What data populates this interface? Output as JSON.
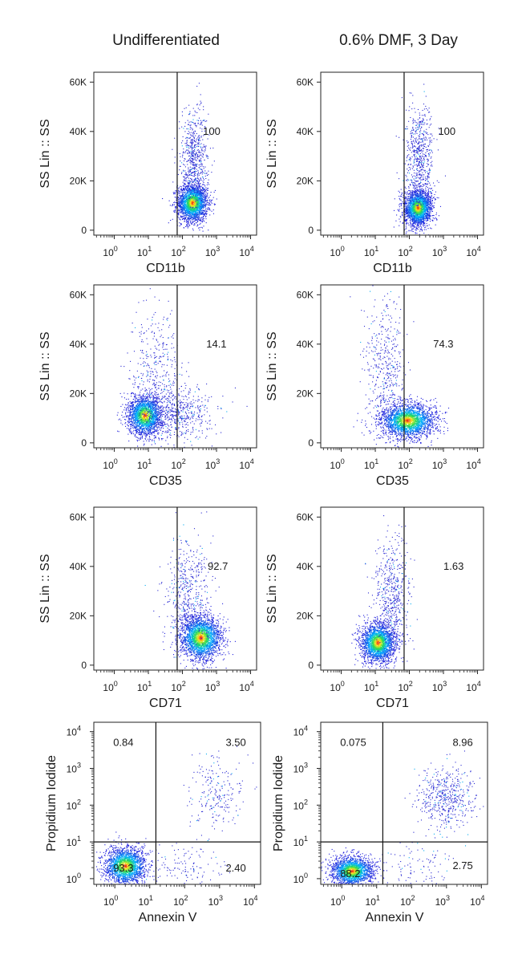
{
  "columns": [
    "Undifferentiated",
    "0.6% DMF, 3 Day"
  ],
  "chart_data": [
    {
      "type": "scatter",
      "id": "cd11b-undiff",
      "row": 0,
      "col": 0,
      "xlabel": "CD11b",
      "ylabel": "SS Lin :: SS",
      "xscale": "log",
      "xlim": [
        0.25,
        15000
      ],
      "ylim": [
        -2000,
        64000
      ],
      "xticks": [
        1,
        10,
        100,
        1000,
        10000
      ],
      "yticks": [
        0,
        20000,
        40000,
        60000
      ],
      "ytick_labels": [
        "0",
        "20K",
        "40K",
        "60K"
      ],
      "gates": {
        "vertical": 70
      },
      "gate_labels": [
        {
          "text": "100",
          "x": 400,
          "y": 40000
        }
      ],
      "populations": [
        {
          "n": 2200,
          "xcenter": 200,
          "xspread": 0.22,
          "ycenter": 11000,
          "yspread": 3800,
          "dense": true
        },
        {
          "n": 650,
          "xcenter": 220,
          "xspread": 0.2,
          "ycenter": 28000,
          "yspread": 10000,
          "dense": false
        }
      ]
    },
    {
      "type": "scatter",
      "id": "cd11b-dmf",
      "row": 0,
      "col": 1,
      "xlabel": "CD11b",
      "ylabel": "SS Lin :: SS",
      "xscale": "log",
      "xlim": [
        0.25,
        15000
      ],
      "ylim": [
        -2000,
        64000
      ],
      "xticks": [
        1,
        10,
        100,
        1000,
        10000
      ],
      "yticks": [
        0,
        20000,
        40000,
        60000
      ],
      "ytick_labels": [
        "0",
        "20K",
        "40K",
        "60K"
      ],
      "gates": {
        "vertical": 70
      },
      "gate_labels": [
        {
          "text": "100",
          "x": 700,
          "y": 40000
        }
      ],
      "populations": [
        {
          "n": 2200,
          "xcenter": 180,
          "xspread": 0.2,
          "ycenter": 9000,
          "yspread": 3500,
          "dense": true
        },
        {
          "n": 650,
          "xcenter": 200,
          "xspread": 0.2,
          "ycenter": 28000,
          "yspread": 11000,
          "dense": false
        }
      ]
    },
    {
      "type": "scatter",
      "id": "cd35-undiff",
      "row": 1,
      "col": 0,
      "xlabel": "CD35",
      "ylabel": "SS Lin :: SS",
      "xscale": "log",
      "xlim": [
        0.25,
        15000
      ],
      "ylim": [
        -2000,
        64000
      ],
      "xticks": [
        1,
        10,
        100,
        1000,
        10000
      ],
      "yticks": [
        0,
        20000,
        40000,
        60000
      ],
      "ytick_labels": [
        "0",
        "20K",
        "40K",
        "60K"
      ],
      "gates": {
        "vertical": 70
      },
      "gate_labels": [
        {
          "text": "14.1",
          "x": 500,
          "y": 40000
        }
      ],
      "populations": [
        {
          "n": 2000,
          "xcenter": 8,
          "xspread": 0.25,
          "ycenter": 11000,
          "yspread": 4000,
          "dense": true
        },
        {
          "n": 600,
          "xcenter": 60,
          "xspread": 0.55,
          "ycenter": 12000,
          "yspread": 6000,
          "dense": false
        },
        {
          "n": 350,
          "xcenter": 15,
          "xspread": 0.35,
          "ycenter": 30000,
          "yspread": 12000,
          "dense": false
        }
      ]
    },
    {
      "type": "scatter",
      "id": "cd35-dmf",
      "row": 1,
      "col": 1,
      "xlabel": "CD35",
      "ylabel": "SS Lin :: SS",
      "xscale": "log",
      "xlim": [
        0.25,
        15000
      ],
      "ylim": [
        -2000,
        64000
      ],
      "xticks": [
        1,
        10,
        100,
        1000,
        10000
      ],
      "yticks": [
        0,
        20000,
        40000,
        60000
      ],
      "ytick_labels": [
        "0",
        "20K",
        "40K",
        "60K"
      ],
      "gates": {
        "vertical": 70
      },
      "gate_labels": [
        {
          "text": "74.3",
          "x": 500,
          "y": 40000
        }
      ],
      "populations": [
        {
          "n": 2300,
          "xcenter": 90,
          "xspread": 0.4,
          "ycenter": 9000,
          "yspread": 3500,
          "dense": true
        },
        {
          "n": 450,
          "xcenter": 20,
          "xspread": 0.3,
          "ycenter": 30000,
          "yspread": 14000,
          "dense": false
        }
      ]
    },
    {
      "type": "scatter",
      "id": "cd71-undiff",
      "row": 2,
      "col": 0,
      "xlabel": "CD71",
      "ylabel": "SS Lin :: SS",
      "xscale": "log",
      "xlim": [
        0.25,
        15000
      ],
      "ylim": [
        -2000,
        64000
      ],
      "xticks": [
        1,
        10,
        100,
        1000,
        10000
      ],
      "yticks": [
        0,
        20000,
        40000,
        60000
      ],
      "ytick_labels": [
        "0",
        "20K",
        "40K",
        "60K"
      ],
      "gates": {
        "vertical": 70
      },
      "gate_labels": [
        {
          "text": "92.7",
          "x": 550,
          "y": 40000
        }
      ],
      "populations": [
        {
          "n": 2400,
          "xcenter": 350,
          "xspread": 0.3,
          "ycenter": 11000,
          "yspread": 4500,
          "dense": true
        },
        {
          "n": 500,
          "xcenter": 150,
          "xspread": 0.35,
          "ycenter": 28000,
          "yspread": 12000,
          "dense": false
        }
      ]
    },
    {
      "type": "scatter",
      "id": "cd71-dmf",
      "row": 2,
      "col": 1,
      "xlabel": "CD71",
      "ylabel": "SS Lin :: SS",
      "xscale": "log",
      "xlim": [
        0.25,
        15000
      ],
      "ylim": [
        -2000,
        64000
      ],
      "xticks": [
        1,
        10,
        100,
        1000,
        10000
      ],
      "yticks": [
        0,
        20000,
        40000,
        60000
      ],
      "ytick_labels": [
        "0",
        "20K",
        "40K",
        "60K"
      ],
      "gates": {
        "vertical": 70
      },
      "gate_labels": [
        {
          "text": "1.63",
          "x": 1000,
          "y": 40000
        }
      ],
      "populations": [
        {
          "n": 2200,
          "xcenter": 12,
          "xspread": 0.25,
          "ycenter": 9000,
          "yspread": 4000,
          "dense": true
        },
        {
          "n": 550,
          "xcenter": 30,
          "xspread": 0.25,
          "ycenter": 28000,
          "yspread": 12000,
          "dense": false
        }
      ]
    },
    {
      "type": "scatter",
      "id": "annexin-undiff",
      "row": 3,
      "col": 0,
      "xlabel": "Annexin V",
      "ylabel": "Propidium Iodide",
      "xscale": "log",
      "yscale": "log",
      "xlim": [
        0.25,
        15000
      ],
      "ylim": [
        0.7,
        18000
      ],
      "xticks": [
        1,
        10,
        100,
        1000,
        10000
      ],
      "yticks": [
        1,
        10,
        100,
        1000,
        10000
      ],
      "gates": {
        "vertical": 15,
        "horizontal": 10
      },
      "gate_labels": [
        {
          "text": "0.84",
          "x": 0.9,
          "y": 5000
        },
        {
          "text": "3.50",
          "x": 1500,
          "y": 5000
        },
        {
          "text": "93.3",
          "x": 0.9,
          "y": 1.9
        },
        {
          "text": "2.40",
          "x": 1500,
          "y": 1.9
        }
      ],
      "populations": [
        {
          "n": 2000,
          "xcenter": 2,
          "xspread": 0.3,
          "ycenter": 2.2,
          "yspread": 0.25,
          "dense": true,
          "ylog": true
        },
        {
          "n": 220,
          "xcenter": 800,
          "xspread": 0.4,
          "ycenter": 200,
          "yspread": 0.5,
          "dense": false,
          "ylog": true
        },
        {
          "n": 120,
          "xcenter": 100,
          "xspread": 0.6,
          "ycenter": 2,
          "yspread": 0.3,
          "dense": false,
          "ylog": true
        }
      ]
    },
    {
      "type": "scatter",
      "id": "annexin-dmf",
      "row": 3,
      "col": 1,
      "xlabel": "Annexin V",
      "ylabel": "Propidium Iodide",
      "xscale": "log",
      "yscale": "log",
      "xlim": [
        0.25,
        15000
      ],
      "ylim": [
        0.7,
        18000
      ],
      "xticks": [
        1,
        10,
        100,
        1000,
        10000
      ],
      "yticks": [
        1,
        10,
        100,
        1000,
        10000
      ],
      "gates": {
        "vertical": 15,
        "horizontal": 10
      },
      "gate_labels": [
        {
          "text": "0.075",
          "x": 0.9,
          "y": 5000
        },
        {
          "text": "8.96",
          "x": 1500,
          "y": 5000
        },
        {
          "text": "88.2",
          "x": 0.9,
          "y": 1.35
        },
        {
          "text": "2.75",
          "x": 1500,
          "y": 2.2
        }
      ],
      "populations": [
        {
          "n": 1900,
          "xcenter": 2,
          "xspread": 0.3,
          "ycenter": 1.6,
          "yspread": 0.2,
          "dense": true,
          "ylog": true
        },
        {
          "n": 500,
          "xcenter": 1000,
          "xspread": 0.4,
          "ycenter": 150,
          "yspread": 0.45,
          "dense": false,
          "ylog": true
        },
        {
          "n": 100,
          "xcenter": 200,
          "xspread": 0.6,
          "ycenter": 2,
          "yspread": 0.3,
          "dense": false,
          "ylog": true
        }
      ]
    }
  ]
}
